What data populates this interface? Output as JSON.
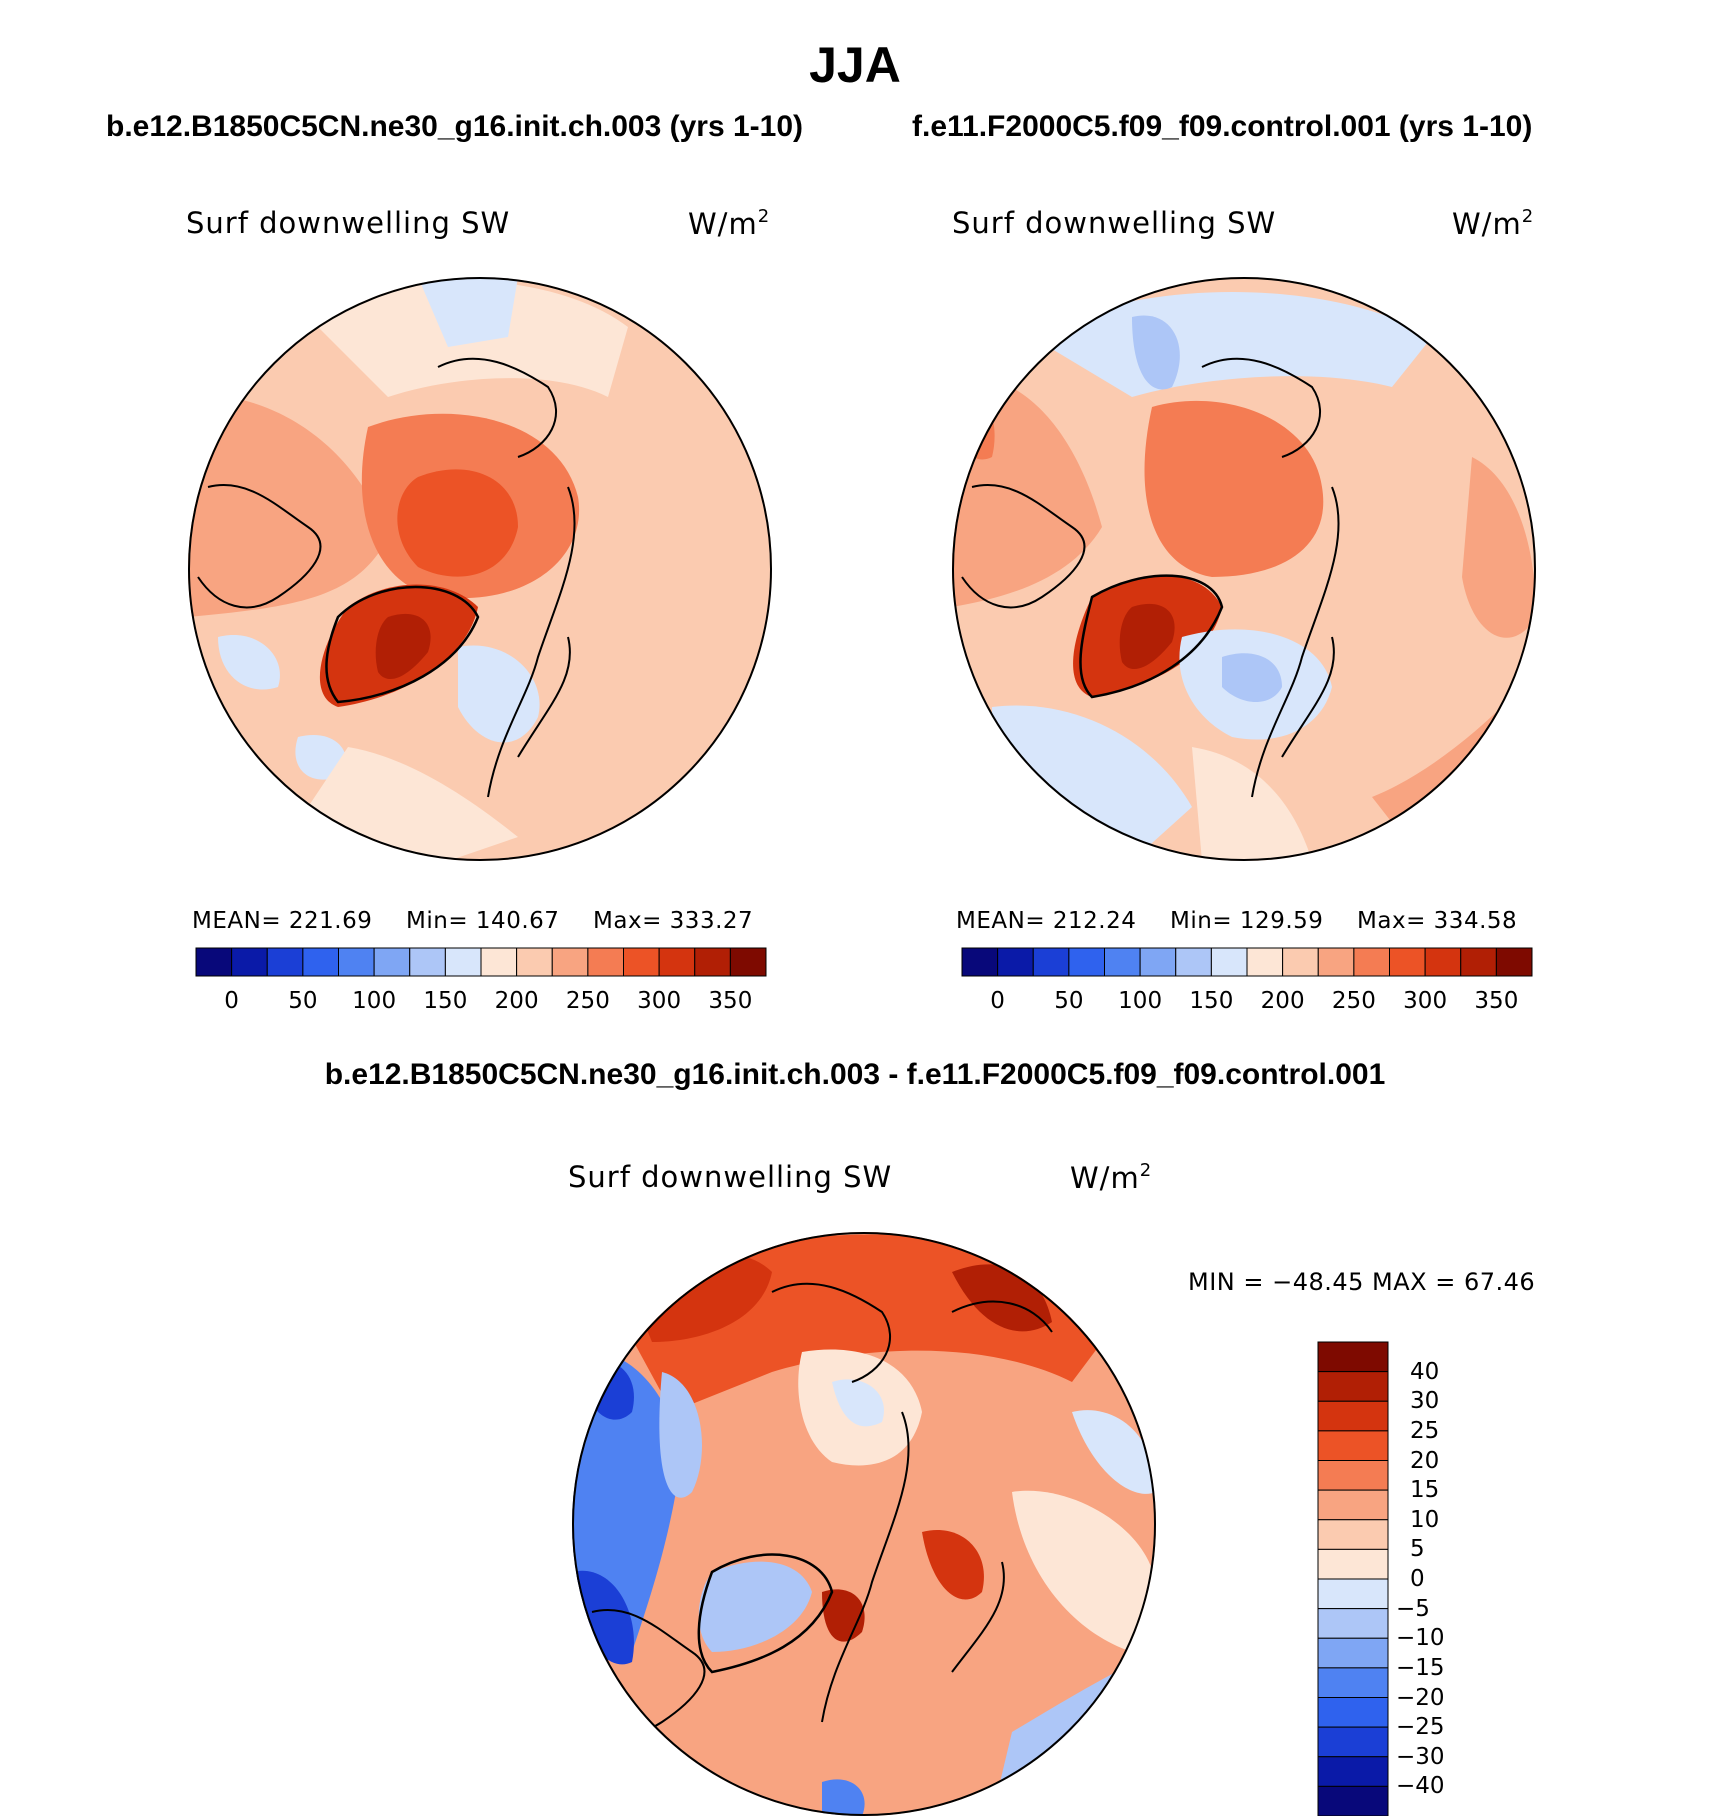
{
  "title": "JJA",
  "panel_a": {
    "case": "b.e12.B1850C5CN.ne30_g16.init.ch.003 (yrs 1-10)",
    "variable": "Surf downwelling SW",
    "units_base": "W/m",
    "units_exp": "2",
    "mean_label": "MEAN=",
    "mean": "221.69",
    "min_label": "Min=",
    "min": "140.67",
    "max_label": "Max=",
    "max": "333.27"
  },
  "panel_b": {
    "case": "f.e11.F2000C5.f09_f09.control.001 (yrs 1-10)",
    "variable": "Surf downwelling SW",
    "units_base": "W/m",
    "units_exp": "2",
    "mean_label": "MEAN=",
    "mean": "212.24",
    "min_label": "Min=",
    "min": "129.59",
    "max_label": "Max=",
    "max": "334.58"
  },
  "diff": {
    "title": "b.e12.B1850C5CN.ne30_g16.init.ch.003 - f.e11.F2000C5.f09_f09.control.001",
    "variable": "Surf downwelling SW",
    "units_base": "W/m",
    "units_exp": "2",
    "minmax": "MIN = −48.45 MAX =   67.46"
  },
  "colorbar_abs": {
    "labels": [
      "0",
      "50",
      "100",
      "150",
      "200",
      "250",
      "300",
      "350"
    ],
    "colors": [
      "#08087a",
      "#0a1aa8",
      "#1b3fd6",
      "#2f62ee",
      "#4f82f2",
      "#7fa6f4",
      "#adc6f7",
      "#d8e6fb",
      "#fde6d6",
      "#fbcbb0",
      "#f8a481",
      "#f47c53",
      "#ec5326",
      "#d4340f",
      "#b11f05",
      "#7e0a00"
    ]
  },
  "colorbar_diff": {
    "labels": [
      "40",
      "30",
      "25",
      "20",
      "15",
      "10",
      "5",
      "0",
      "−5",
      "−10",
      "−15",
      "−20",
      "−25",
      "−30",
      "−40"
    ],
    "colors": [
      "#7e0a00",
      "#b11f05",
      "#d4340f",
      "#ec5326",
      "#f47c53",
      "#f8a481",
      "#fbcbb0",
      "#fde6d6",
      "#d8e6fb",
      "#adc6f7",
      "#7fa6f4",
      "#4f82f2",
      "#2f62ee",
      "#1b3fd6",
      "#0a1aa8",
      "#08087a"
    ]
  },
  "map_data": {
    "projection": "north-polar-stereographic",
    "field": "Surf downwelling SW",
    "season": "JJA"
  }
}
